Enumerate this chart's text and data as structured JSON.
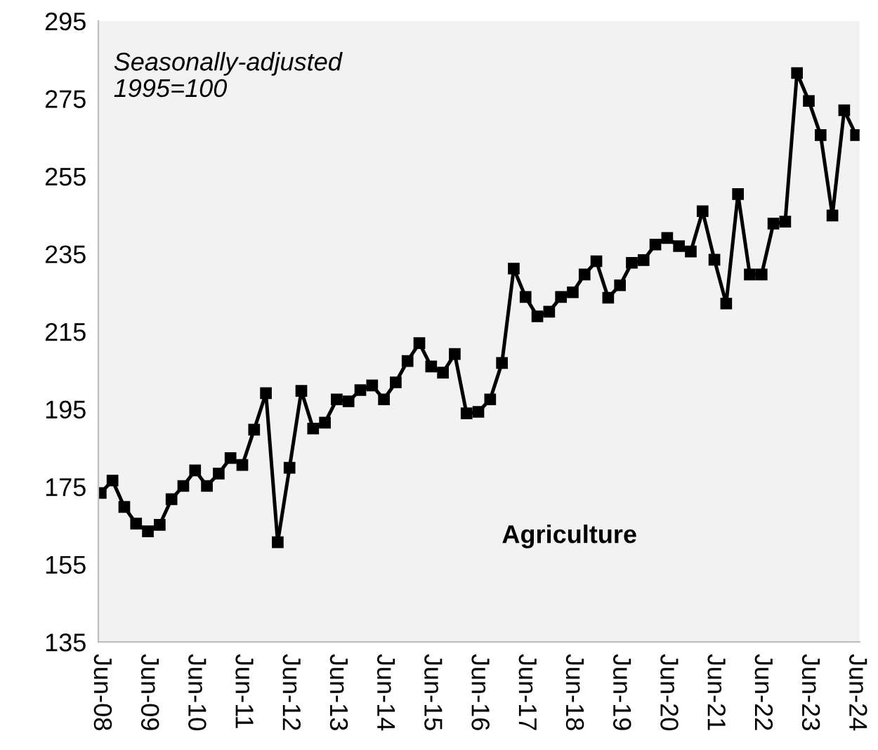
{
  "chart_data": {
    "type": "line",
    "annotations": [
      "Seasonally-adjusted\n1995=100",
      "Agriculture"
    ],
    "categories": [
      "Jun-08",
      null,
      null,
      null,
      "Jun-09",
      null,
      null,
      null,
      "Jun-10",
      null,
      null,
      null,
      "Jun-11",
      null,
      null,
      null,
      "Jun-12",
      null,
      null,
      null,
      "Jun-13",
      null,
      null,
      null,
      "Jun-14",
      null,
      null,
      null,
      "Jun-15",
      null,
      null,
      null,
      "Jun-16",
      null,
      null,
      null,
      "Jun-17",
      null,
      null,
      null,
      "Jun-18",
      null,
      null,
      null,
      "Jun-19",
      null,
      null,
      null,
      "Jun-20",
      null,
      null,
      null,
      "Jun-21",
      null,
      null,
      null,
      "Jun-22",
      null,
      null,
      null,
      "Jun-23",
      null,
      null,
      null,
      "Jun-24"
    ],
    "series": [
      {
        "color": "#000000",
        "values": [
          173.4,
          176.6,
          169.8,
          165.5,
          163.5,
          165.2,
          171.8,
          175.2,
          179.2,
          175.2,
          178.4,
          182.4,
          180.6,
          189.7,
          199.1,
          160.7,
          179.9,
          199.7,
          190.0,
          191.5,
          197.5,
          197.0,
          199.9,
          201.1,
          197.5,
          201.9,
          207.4,
          212.0,
          206.0,
          204.4,
          209.2,
          193.9,
          194.3,
          197.5,
          206.9,
          231.2,
          223.9,
          218.9,
          220.1,
          223.9,
          225.1,
          229.7,
          233.1,
          223.7,
          226.9,
          232.7,
          233.4,
          237.4,
          239.1,
          237.0,
          235.6,
          246.0,
          233.5,
          222.2,
          250.4,
          229.7,
          229.7,
          242.8,
          243.3,
          281.6,
          274.4,
          265.6,
          244.9,
          272.0,
          265.6
        ]
      }
    ],
    "ylim": [
      135,
      295
    ],
    "yticks": [
      135,
      155,
      175,
      195,
      215,
      235,
      255,
      275,
      295
    ],
    "grid": false,
    "legend": false,
    "marker": "square",
    "line_style": "solid"
  }
}
